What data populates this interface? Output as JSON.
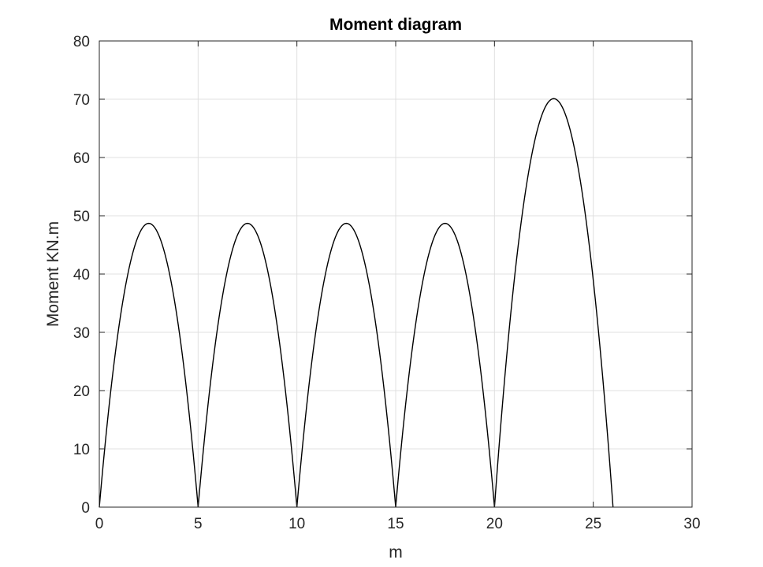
{
  "chart_data": {
    "type": "line",
    "title": "Moment diagram",
    "xlabel": "m",
    "ylabel": "Moment KN.m",
    "xlim": [
      0,
      30
    ],
    "ylim": [
      0,
      80
    ],
    "xticks": [
      0,
      5,
      10,
      15,
      20,
      25,
      30
    ],
    "yticks": [
      0,
      10,
      20,
      30,
      40,
      50,
      60,
      70,
      80
    ],
    "grid": true,
    "line_color": "#000000",
    "grid_color": "#e0e0e0",
    "axis_color": "#262626",
    "segments": [
      {
        "x_start": 0,
        "x_end": 5,
        "peak_x": 2.5,
        "peak_y": 48.7
      },
      {
        "x_start": 5,
        "x_end": 10,
        "peak_x": 7.5,
        "peak_y": 48.7
      },
      {
        "x_start": 10,
        "x_end": 15,
        "peak_x": 12.5,
        "peak_y": 48.7
      },
      {
        "x_start": 15,
        "x_end": 20,
        "peak_x": 17.5,
        "peak_y": 48.7
      },
      {
        "x_start": 20,
        "x_end": 26,
        "peak_x": 23,
        "peak_y": 70.1
      }
    ],
    "series": [
      {
        "x": [
          0,
          1.25,
          2.5,
          3.75,
          5,
          6.25,
          7.5,
          8.75,
          10,
          11.25,
          12.5,
          13.75,
          15,
          16.25,
          17.5,
          18.75,
          20,
          21.5,
          23,
          24.5,
          26
        ],
        "y": [
          0,
          36.5,
          48.7,
          36.5,
          0,
          36.5,
          48.7,
          36.5,
          0,
          36.5,
          48.7,
          36.5,
          0,
          36.5,
          48.7,
          36.5,
          0,
          52.6,
          70.1,
          52.6,
          0
        ]
      }
    ]
  }
}
